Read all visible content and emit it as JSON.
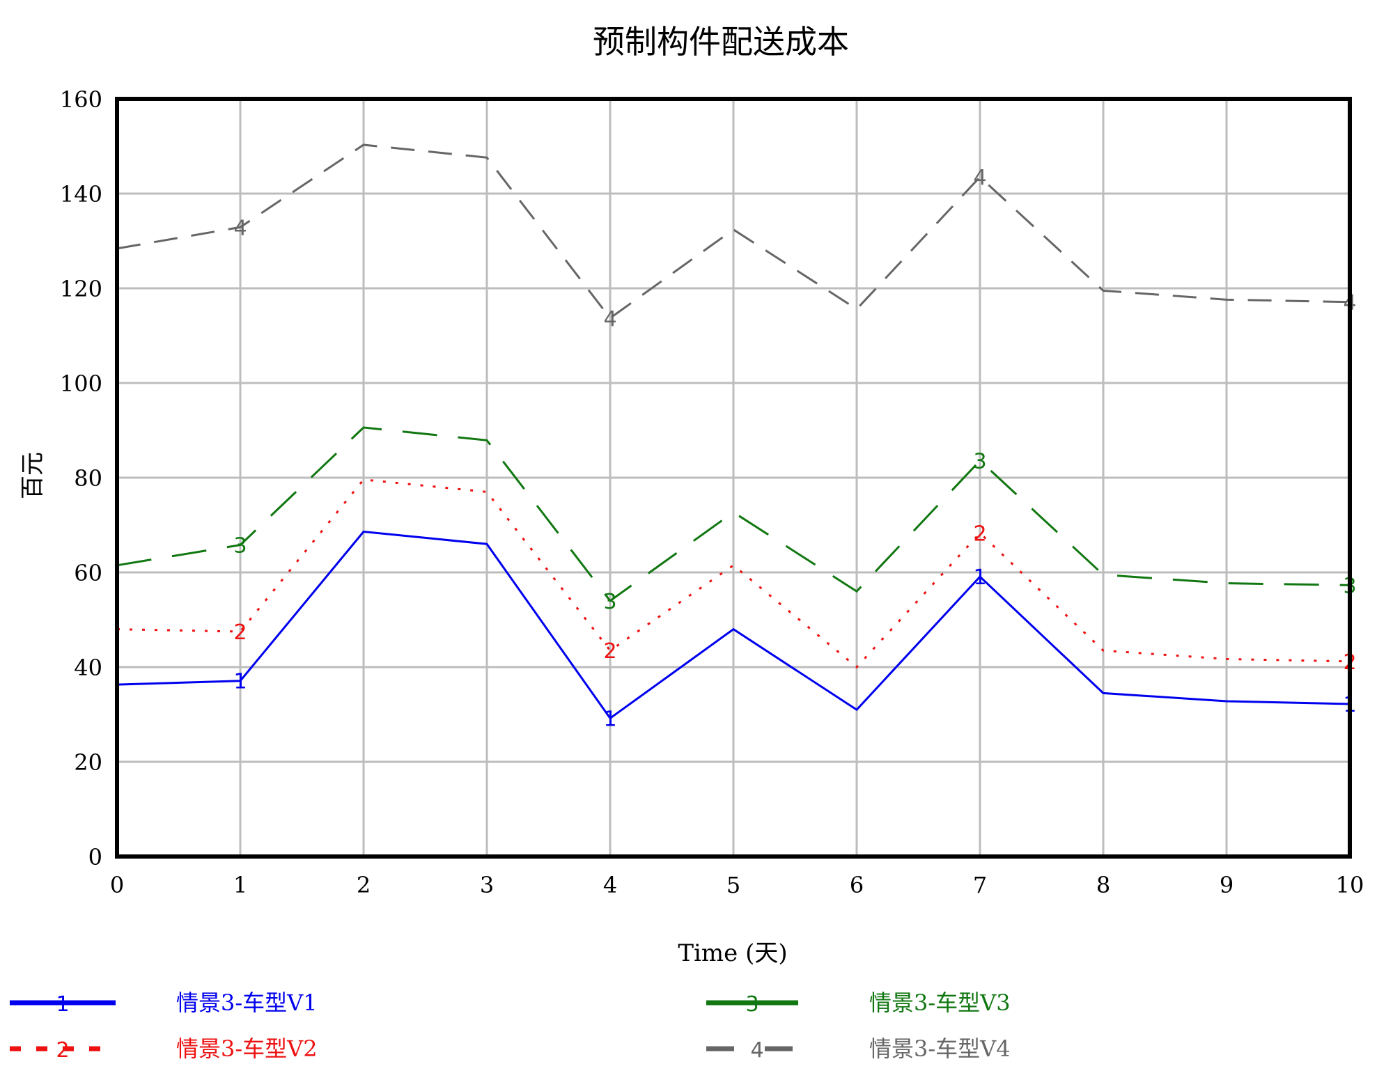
{
  "chart_data": {
    "type": "line",
    "title": "预制构件配送成本",
    "xlabel": "Time (天)",
    "ylabel": "百元",
    "xlim": [
      0,
      10
    ],
    "ylim": [
      0,
      160
    ],
    "x_ticks": [
      "0",
      "1",
      "2",
      "3",
      "4",
      "5",
      "6",
      "7",
      "8",
      "9",
      "10"
    ],
    "y_ticks": [
      "0",
      "20",
      "40",
      "60",
      "80",
      "100",
      "120",
      "140",
      "160"
    ],
    "grid": true,
    "legend_position": "bottom",
    "x": [
      0,
      1,
      2,
      3,
      4,
      5,
      6,
      7,
      8,
      9,
      10
    ],
    "series": [
      {
        "name": "情景3-车型V1",
        "marker": "1",
        "color": "#0000ee",
        "dash": "solid",
        "values": [
          36.3,
          37.1,
          68.6,
          66.0,
          29.2,
          48.0,
          31.0,
          59.1,
          34.5,
          32.8,
          32.2
        ]
      },
      {
        "name": "情景3-车型V2",
        "marker": "2",
        "color": "#ee1111",
        "dash": "dotted",
        "values": [
          48.0,
          47.5,
          79.6,
          77.0,
          43.5,
          61.5,
          40.0,
          68.3,
          43.5,
          41.7,
          41.2
        ]
      },
      {
        "name": "情景3-车型V3",
        "marker": "3",
        "color": "#117711",
        "dash": "longdash",
        "values": [
          61.5,
          65.8,
          90.6,
          87.9,
          54.0,
          72.7,
          56.0,
          83.6,
          59.5,
          57.7,
          57.3
        ]
      },
      {
        "name": "情景3-车型V4",
        "marker": "4",
        "color": "#666666",
        "dash": "dash",
        "values": [
          128.4,
          132.9,
          150.3,
          147.6,
          113.7,
          132.4,
          115.6,
          143.5,
          119.5,
          117.6,
          117.1
        ]
      }
    ]
  }
}
